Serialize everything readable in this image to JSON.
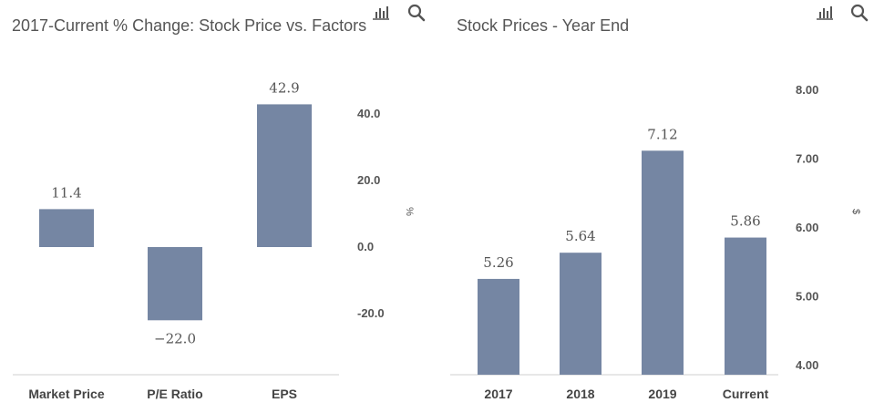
{
  "chart_data": [
    {
      "type": "bar",
      "title": "2017-Current % Change: Stock Price vs. Factors",
      "categories": [
        "Market Price",
        "P/E Ratio",
        "EPS"
      ],
      "values": [
        11.4,
        -22.0,
        42.9
      ],
      "data_labels": [
        "11.4",
        "−22.0",
        "42.9"
      ],
      "ylabel": "%",
      "yticks": [
        "40.0",
        "20.0",
        "0.0",
        "-20.0"
      ],
      "ytick_values": [
        40,
        20,
        0,
        -20
      ],
      "ylim": [
        -38,
        50
      ],
      "bar_color": "#7586a3"
    },
    {
      "type": "bar",
      "title": "Stock Prices - Year End",
      "categories": [
        "2017",
        "2018",
        "2019",
        "Current"
      ],
      "values": [
        5.26,
        5.64,
        7.12,
        5.86
      ],
      "data_labels": [
        "5.26",
        "5.64",
        "7.12",
        "5.86"
      ],
      "ylabel": "$",
      "yticks": [
        "8.00",
        "7.00",
        "6.00",
        "5.00",
        "4.00"
      ],
      "ytick_values": [
        8,
        7,
        6,
        5,
        4
      ],
      "ylim": [
        3.85,
        8.2
      ],
      "bar_color": "#7586a3"
    }
  ],
  "toolbar": {
    "chart_icon": "bar-chart-icon",
    "zoom_icon": "magnifier-icon"
  }
}
